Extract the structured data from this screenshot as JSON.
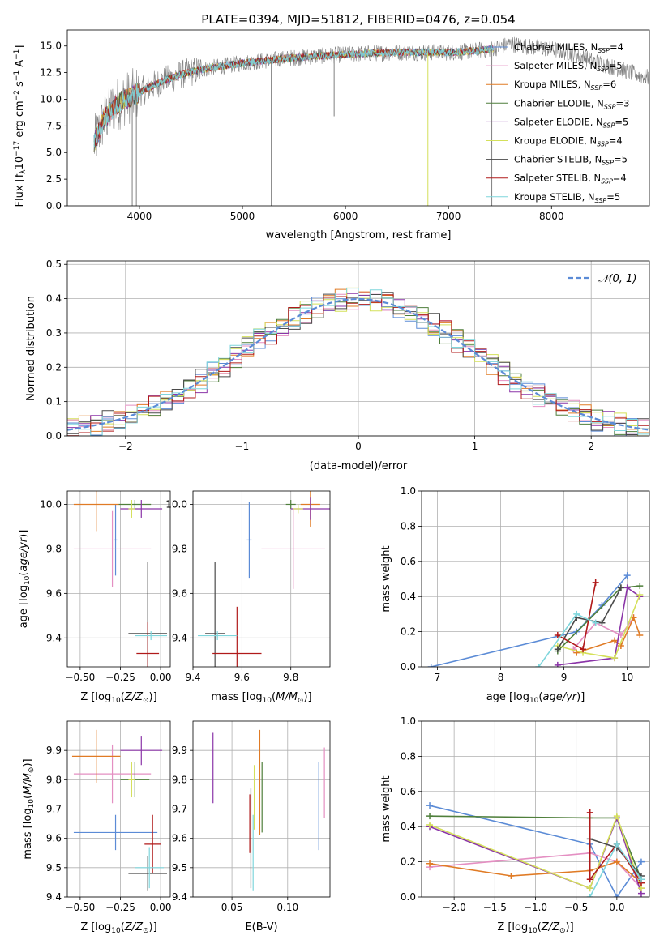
{
  "colors": {
    "chabrier_miles": "#5b8bd6",
    "salpeter_miles": "#e48fc2",
    "kroupa_miles": "#e07b25",
    "chabrier_elodie": "#4f7f3b",
    "salpeter_elodie": "#8b35a8",
    "kroupa_elodie": "#d4e05a",
    "chabrier_stelib": "#4a4a4a",
    "salpeter_stelib": "#b01a1a",
    "kroupa_stelib": "#7fd6dc",
    "data": "#808080",
    "gaussian": "#5b8bd6",
    "grid": "#b0b0b0"
  },
  "chart_data": [
    {
      "id": "spectrum",
      "type": "line",
      "title": "PLATE=0394, MJD=51812, FIBERID=0476, z=0.054",
      "xlabel": "wavelength [Angstrom, rest frame]",
      "ylabel": "Flux [f_λ10^-17 erg cm^-2 s^-1 A^-1]",
      "xlim": [
        3300,
        8950
      ],
      "ylim": [
        0,
        16.5
      ],
      "xticks": [
        "4000",
        "5000",
        "6000",
        "7000",
        "8000"
      ],
      "yticks": [
        "0.0",
        "2.5",
        "5.0",
        "7.5",
        "10.0",
        "12.5",
        "15.0"
      ],
      "grid": false,
      "legend_position": "right",
      "legend": [
        {
          "name": "Chabrier MILES, N_SSP=4",
          "base": "Chabrier MILES, N",
          "sub": "SSP",
          "tail": "=4",
          "color_key": "chabrier_miles"
        },
        {
          "name": "Salpeter MILES, N_SSP=5",
          "base": "Salpeter MILES, N",
          "sub": "SSP",
          "tail": "=5",
          "color_key": "salpeter_miles"
        },
        {
          "name": "Kroupa MILES, N_SSP=6",
          "base": "Kroupa MILES, N",
          "sub": "SSP",
          "tail": "=6",
          "color_key": "kroupa_miles"
        },
        {
          "name": "Chabrier ELODIE, N_SSP=3",
          "base": "Chabrier ELODIE, N",
          "sub": "SSP",
          "tail": "=3",
          "color_key": "chabrier_elodie"
        },
        {
          "name": "Salpeter ELODIE, N_SSP=5",
          "base": "Salpeter ELODIE, N",
          "sub": "SSP",
          "tail": "=5",
          "color_key": "salpeter_elodie"
        },
        {
          "name": "Kroupa ELODIE, N_SSP=4",
          "base": "Kroupa ELODIE, N",
          "sub": "SSP",
          "tail": "=4",
          "color_key": "kroupa_elodie"
        },
        {
          "name": "Chabrier STELIB, N_SSP=5",
          "base": "Chabrier STELIB, N",
          "sub": "SSP",
          "tail": "=5",
          "color_key": "chabrier_stelib"
        },
        {
          "name": "Salpeter STELIB, N_SSP=4",
          "base": "Salpeter STELIB, N",
          "sub": "SSP",
          "tail": "=4",
          "color_key": "salpeter_stelib"
        },
        {
          "name": "Kroupa STELIB, N_SSP=5",
          "base": "Kroupa STELIB, N",
          "sub": "SSP",
          "tail": "=5",
          "color_key": "kroupa_stelib"
        }
      ],
      "continuum": {
        "x": [
          3560,
          3650,
          3750,
          3850,
          3950,
          4050,
          4200,
          4400,
          4600,
          4800,
          5000,
          5200,
          5500,
          5800,
          6000,
          6200,
          6500,
          6800,
          7000,
          7200,
          7400,
          7500,
          7600,
          7800,
          8000,
          8200,
          8400,
          8600,
          8800,
          8950
        ],
        "y": [
          5.8,
          8.0,
          9.3,
          10.0,
          10.4,
          10.9,
          11.6,
          12.3,
          12.8,
          13.1,
          13.4,
          13.6,
          13.9,
          14.1,
          14.2,
          14.3,
          14.4,
          14.4,
          14.4,
          14.5,
          14.7,
          14.9,
          15.2,
          14.9,
          14.7,
          14.3,
          13.6,
          13.0,
          12.4,
          12.0
        ]
      },
      "model_end_x": 7440,
      "spikes": [
        {
          "x": 3930,
          "to": 0.0
        },
        {
          "x": 3970,
          "to": 0.0
        },
        {
          "x": 5280,
          "to": 0.0
        },
        {
          "x": 5890,
          "to": 8.4
        },
        {
          "x": 6800,
          "to": 0.0
        },
        {
          "x": 7420,
          "to": 0.0
        }
      ]
    },
    {
      "id": "residuals",
      "type": "bar",
      "xlabel": "(data-model)/error",
      "ylabel": "Normed distribution",
      "xlim": [
        -2.5,
        2.5
      ],
      "ylim": [
        0,
        0.51
      ],
      "xticks": [
        "−2",
        "−1",
        "0",
        "1",
        "2"
      ],
      "yticks": [
        "0.0",
        "0.1",
        "0.2",
        "0.3",
        "0.4",
        "0.5"
      ],
      "grid": true,
      "legend_position": "top-right",
      "gaussian_label": "𝒩(0, 1)",
      "bin_width": 0.1
    },
    {
      "id": "age_vs_Z",
      "type": "scatter",
      "xlabel": "Z [log10(Z/Z⊙)]",
      "ylabel": "age  [log10(age/yr)]",
      "xlim": [
        -0.58,
        0.06
      ],
      "ylim": [
        9.27,
        10.06
      ],
      "xticks": [
        "−0.50",
        "−0.25",
        "0.00"
      ],
      "yticks": [
        "9.4",
        "9.6",
        "9.8",
        "10.0"
      ],
      "grid": true,
      "points": [
        {
          "color_key": "chabrier_miles",
          "x": -0.28,
          "y": 9.84,
          "ex": 0.01,
          "ey": 0.16
        },
        {
          "color_key": "salpeter_miles",
          "x": -0.3,
          "y": 9.8,
          "ex": 0.24,
          "ey": 0.17
        },
        {
          "color_key": "kroupa_miles",
          "x": -0.4,
          "y": 10.0,
          "ex": 0.14,
          "ey": 0.12
        },
        {
          "color_key": "chabrier_elodie",
          "x": -0.16,
          "y": 10.0,
          "ex": 0.1,
          "ey": 0.02
        },
        {
          "color_key": "salpeter_elodie",
          "x": -0.12,
          "y": 9.98,
          "ex": 0.13,
          "ey": 0.04
        },
        {
          "color_key": "kroupa_elodie",
          "x": -0.18,
          "y": 9.98,
          "ex": 0.02,
          "ey": 0.04
        },
        {
          "color_key": "chabrier_stelib",
          "x": -0.08,
          "y": 9.42,
          "ex": 0.12,
          "ey": 0.32
        },
        {
          "color_key": "salpeter_stelib",
          "x": -0.08,
          "y": 9.33,
          "ex": 0.07,
          "ey": 0.14
        },
        {
          "color_key": "kroupa_stelib",
          "x": -0.06,
          "y": 9.41,
          "ex": 0.1,
          "ey": 0.02
        }
      ]
    },
    {
      "id": "age_vs_mass",
      "type": "scatter",
      "xlabel": "mass [log10(M/M⊙)]",
      "ylabel": "",
      "xlim": [
        9.4,
        9.96
      ],
      "ylim": [
        9.27,
        10.06
      ],
      "xticks": [
        "9.4",
        "9.6",
        "9.8"
      ],
      "yticks": [
        "9.4",
        "9.6",
        "9.8",
        "10.0"
      ],
      "grid": true,
      "points": [
        {
          "color_key": "chabrier_miles",
          "x": 9.63,
          "y": 9.84,
          "ex": 0.01,
          "ey": 0.17
        },
        {
          "color_key": "salpeter_miles",
          "x": 9.81,
          "y": 9.8,
          "ex": 0.13,
          "ey": 0.18
        },
        {
          "color_key": "kroupa_miles",
          "x": 9.88,
          "y": 10.0,
          "ex": 0.04,
          "ey": 0.1
        },
        {
          "color_key": "chabrier_elodie",
          "x": 9.8,
          "y": 10.0,
          "ex": 0.02,
          "ey": 0.02
        },
        {
          "color_key": "salpeter_elodie",
          "x": 9.88,
          "y": 9.98,
          "ex": 0.08,
          "ey": 0.05
        },
        {
          "color_key": "kroupa_elodie",
          "x": 9.83,
          "y": 9.98,
          "ex": 0.02,
          "ey": 0.02
        },
        {
          "color_key": "chabrier_stelib",
          "x": 9.49,
          "y": 9.42,
          "ex": 0.04,
          "ey": 0.32
        },
        {
          "color_key": "salpeter_stelib",
          "x": 9.58,
          "y": 9.33,
          "ex": 0.1,
          "ey": 0.21
        },
        {
          "color_key": "kroupa_stelib",
          "x": 9.5,
          "y": 9.41,
          "ex": 0.08,
          "ey": 0.02
        }
      ]
    },
    {
      "id": "weight_vs_age",
      "type": "line",
      "xlabel": "age  [log10(age/yr)]",
      "ylabel": "mass weight",
      "xlim": [
        6.75,
        10.35
      ],
      "ylim": [
        0,
        1.0
      ],
      "xticks": [
        "7",
        "8",
        "9",
        "10"
      ],
      "yticks": [
        "0.0",
        "0.2",
        "0.4",
        "0.6",
        "0.8",
        "1.0"
      ],
      "grid": true,
      "series": [
        {
          "color_key": "chabrier_miles",
          "x": [
            6.9,
            9.2,
            9.6,
            10.0
          ],
          "y": [
            0.0,
            0.2,
            0.35,
            0.52
          ]
        },
        {
          "color_key": "salpeter_miles",
          "x": [
            9.15,
            9.5,
            9.9,
            10.1
          ],
          "y": [
            0.1,
            0.25,
            0.18,
            0.28
          ]
        },
        {
          "color_key": "kroupa_miles",
          "x": [
            9.2,
            9.8,
            9.9,
            10.1,
            10.2
          ],
          "y": [
            0.08,
            0.15,
            0.12,
            0.28,
            0.18
          ]
        },
        {
          "color_key": "chabrier_elodie",
          "x": [
            8.9,
            9.9,
            10.2
          ],
          "y": [
            0.09,
            0.45,
            0.46
          ]
        },
        {
          "color_key": "salpeter_elodie",
          "x": [
            8.9,
            9.8,
            10.0,
            10.2
          ],
          "y": [
            0.01,
            0.05,
            0.45,
            0.4
          ]
        },
        {
          "color_key": "kroupa_elodie",
          "x": [
            8.9,
            9.3,
            9.8,
            10.2
          ],
          "y": [
            0.12,
            0.08,
            0.05,
            0.41
          ]
        },
        {
          "color_key": "chabrier_stelib",
          "x": [
            8.9,
            9.2,
            9.6,
            9.9
          ],
          "y": [
            0.1,
            0.28,
            0.25,
            0.45
          ]
        },
        {
          "color_key": "salpeter_stelib",
          "x": [
            8.9,
            9.3,
            9.5
          ],
          "y": [
            0.18,
            0.1,
            0.48
          ]
        },
        {
          "color_key": "kroupa_stelib",
          "x": [
            8.6,
            9.2,
            9.5
          ],
          "y": [
            0.0,
            0.3,
            0.25
          ]
        }
      ]
    },
    {
      "id": "mass_vs_Z",
      "type": "scatter",
      "xlabel": "Z [log10(Z/Z⊙)]",
      "ylabel": "mass [log10(M/M⊙)]",
      "xlim": [
        -0.58,
        0.06
      ],
      "ylim": [
        9.4,
        10.0
      ],
      "xticks": [
        "−0.50",
        "−0.25",
        "0.00"
      ],
      "yticks": [
        "9.4",
        "9.5",
        "9.6",
        "9.7",
        "9.8",
        "9.9"
      ],
      "grid": true,
      "points": [
        {
          "color_key": "chabrier_miles",
          "x": -0.28,
          "y": 9.62,
          "ex": 0.26,
          "ey": 0.06
        },
        {
          "color_key": "salpeter_miles",
          "x": -0.3,
          "y": 9.82,
          "ex": 0.24,
          "ey": 0.1
        },
        {
          "color_key": "kroupa_miles",
          "x": -0.4,
          "y": 9.88,
          "ex": 0.15,
          "ey": 0.09
        },
        {
          "color_key": "chabrier_elodie",
          "x": -0.16,
          "y": 9.8,
          "ex": 0.09,
          "ey": 0.06
        },
        {
          "color_key": "salpeter_elodie",
          "x": -0.12,
          "y": 9.9,
          "ex": 0.13,
          "ey": 0.05
        },
        {
          "color_key": "kroupa_elodie",
          "x": -0.18,
          "y": 9.8,
          "ex": 0.02,
          "ey": 0.06
        },
        {
          "color_key": "chabrier_stelib",
          "x": -0.08,
          "y": 9.48,
          "ex": 0.12,
          "ey": 0.06
        },
        {
          "color_key": "salpeter_stelib",
          "x": -0.05,
          "y": 9.58,
          "ex": 0.05,
          "ey": 0.1
        },
        {
          "color_key": "kroupa_stelib",
          "x": -0.07,
          "y": 9.5,
          "ex": 0.09,
          "ey": 0.07
        }
      ]
    },
    {
      "id": "mass_vs_ebv",
      "type": "scatter",
      "xlabel": "E(B-V)",
      "ylabel": "",
      "xlim": [
        0.015,
        0.138
      ],
      "ylim": [
        9.4,
        10.0
      ],
      "xticks": [
        "0.05",
        "0.10"
      ],
      "yticks": [
        "9.4",
        "9.5",
        "9.6",
        "9.7",
        "9.8",
        "9.9"
      ],
      "grid": true,
      "points": [
        {
          "color_key": "chabrier_miles",
          "x": 0.128,
          "y": 9.71,
          "ex": 0,
          "ey": 0.15
        },
        {
          "color_key": "salpeter_miles",
          "x": 0.133,
          "y": 9.79,
          "ex": 0,
          "ey": 0.12
        },
        {
          "color_key": "kroupa_miles",
          "x": 0.075,
          "y": 9.79,
          "ex": 0,
          "ey": 0.18
        },
        {
          "color_key": "chabrier_elodie",
          "x": 0.077,
          "y": 9.74,
          "ex": 0,
          "ey": 0.12
        },
        {
          "color_key": "salpeter_elodie",
          "x": 0.033,
          "y": 9.84,
          "ex": 0,
          "ey": 0.12
        },
        {
          "color_key": "kroupa_elodie",
          "x": 0.07,
          "y": 9.74,
          "ex": 0,
          "ey": 0.11
        },
        {
          "color_key": "chabrier_stelib",
          "x": 0.067,
          "y": 9.6,
          "ex": 0,
          "ey": 0.17
        },
        {
          "color_key": "salpeter_stelib",
          "x": 0.066,
          "y": 9.65,
          "ex": 0,
          "ey": 0.1
        },
        {
          "color_key": "kroupa_stelib",
          "x": 0.069,
          "y": 9.55,
          "ex": 0,
          "ey": 0.13
        }
      ]
    },
    {
      "id": "weight_vs_Z",
      "type": "line",
      "xlabel": "Z [log10(Z/Z⊙)]",
      "ylabel": "mass weight",
      "xlim": [
        -2.4,
        0.4
      ],
      "ylim": [
        0,
        1.0
      ],
      "xticks": [
        "−2.0",
        "−1.5",
        "−1.0",
        "−0.5",
        "0.0"
      ],
      "yticks": [
        "0.0",
        "0.2",
        "0.4",
        "0.6",
        "0.8",
        "1.0"
      ],
      "grid": true,
      "series": [
        {
          "color_key": "chabrier_miles",
          "x": [
            -2.3,
            -0.33,
            0.0,
            0.3
          ],
          "y": [
            0.52,
            0.3,
            0.0,
            0.2
          ]
        },
        {
          "color_key": "salpeter_miles",
          "x": [
            -2.3,
            -0.33,
            0.0,
            0.3
          ],
          "y": [
            0.17,
            0.25,
            0.2,
            0.05
          ]
        },
        {
          "color_key": "kroupa_miles",
          "x": [
            -2.3,
            -1.3,
            -0.33,
            0.0,
            0.3
          ],
          "y": [
            0.19,
            0.12,
            0.15,
            0.2,
            0.08
          ]
        },
        {
          "color_key": "chabrier_elodie",
          "x": [
            -2.3,
            -0.33,
            0.0,
            0.3
          ],
          "y": [
            0.46,
            0.45,
            0.45,
            0.1
          ]
        },
        {
          "color_key": "salpeter_elodie",
          "x": [
            -2.3,
            -0.33,
            0.0,
            0.3
          ],
          "y": [
            0.4,
            0.05,
            0.45,
            0.02
          ]
        },
        {
          "color_key": "kroupa_elodie",
          "x": [
            -2.3,
            -0.33,
            0.0,
            0.3
          ],
          "y": [
            0.41,
            0.05,
            0.46,
            0.05
          ]
        },
        {
          "color_key": "chabrier_stelib",
          "x": [
            -0.33,
            0.0,
            0.3
          ],
          "y": [
            0.33,
            0.28,
            0.12
          ]
        },
        {
          "color_key": "salpeter_stelib",
          "x": [
            -0.33,
            -0.33,
            0.0,
            0.3
          ],
          "y": [
            0.48,
            0.1,
            0.3,
            0.08
          ]
        },
        {
          "color_key": "kroupa_stelib",
          "x": [
            -0.33,
            0.0,
            0.3
          ],
          "y": [
            0.0,
            0.3,
            0.1
          ]
        }
      ]
    }
  ]
}
